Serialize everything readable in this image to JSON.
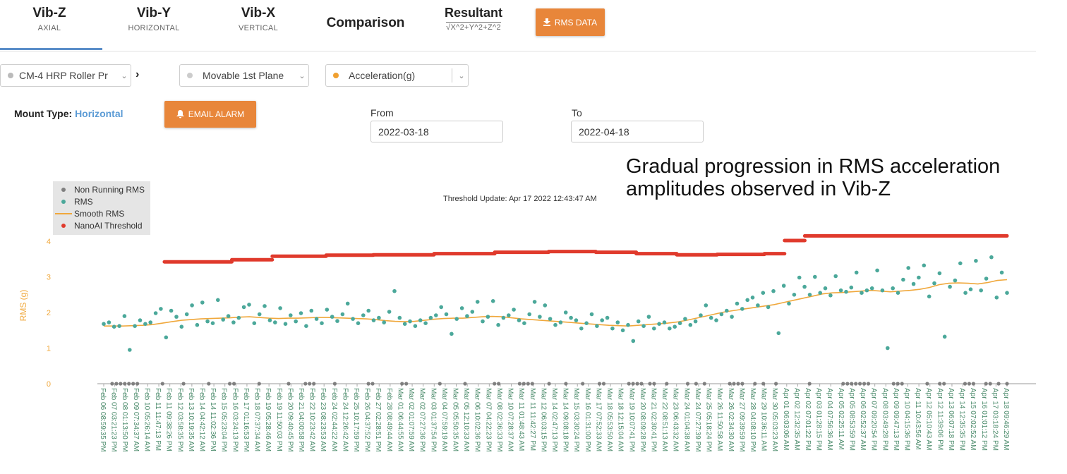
{
  "tabs": [
    {
      "label": "Vib-Z",
      "sub": "AXIAL"
    },
    {
      "label": "Vib-Y",
      "sub": "HORIZONTAL"
    },
    {
      "label": "Vib-X",
      "sub": "VERTICAL"
    },
    {
      "label": "Comparison",
      "sub": ""
    },
    {
      "label": "Resultant",
      "sub": "√X^2+Y^2+Z^2"
    }
  ],
  "rms_button": "RMS DATA",
  "selects": {
    "machine": "CM-4 HRP Roller Pr",
    "plane": "Movable 1st Plane",
    "measure": "Acceleration(g)"
  },
  "mount": {
    "label": "Mount Type:",
    "value": "Horizontal"
  },
  "email_alarm": "EMAIL ALARM",
  "from": {
    "label": "From",
    "value": "2022-03-18"
  },
  "to": {
    "label": "To",
    "value": "2022-04-18"
  },
  "annotation": {
    "line1": "Gradual progression in RMS acceleration",
    "line2": "amplitudes observed in Vib-Z"
  },
  "threshold_update": "Threshold Update: Apr 17 2022 12:43:47 AM",
  "colors": {
    "accent": "#e8863a",
    "tab_active": "#5b8ec9",
    "rms": "#4ba89a",
    "non_running": "#7f7f7f",
    "smooth": "#f0a83c",
    "threshold": "#e03a2c",
    "axis_label": "#f0a83c",
    "tick": "#4a8a6a"
  },
  "chart_data": {
    "type": "scatter",
    "title": "",
    "ylabel": "RMS (g)",
    "ylim": [
      0,
      4
    ],
    "yticks": [
      0,
      1,
      2,
      3,
      4
    ],
    "legend": [
      "Non Running RMS",
      "RMS",
      "Smooth RMS",
      "NanoAI Threshold"
    ],
    "legend_position": "top-left",
    "xticks": [
      "Feb 06 08:59:35 PM",
      "Feb 07 03:21:23 PM",
      "Feb 08 01:13:50 PM",
      "Feb 09 07:34:37 AM",
      "Feb 10 05:26:14 AM",
      "Feb 11 11:47:13 PM",
      "Feb 11 09:38:26 PM",
      "Feb 12 03:58:35 PM",
      "Feb 13 10:19:35 AM",
      "Feb 14 04:42:12 AM",
      "Feb 14 11:02:36 PM",
      "Feb 15 05:23:04 PM",
      "Feb 16 03:24:13 PM",
      "Feb 17 01:16:53 PM",
      "Feb 18 07:37:34 AM",
      "Feb 19 05:28:46 AM",
      "Feb 19 11:50:03 PM",
      "Feb 20 09:40:45 PM",
      "Feb 21 04:00:58 PM",
      "Feb 22 10:23:42 AM",
      "Feb 23 08:23:53 AM",
      "Feb 24 02:44:22 AM",
      "Feb 24 12:26:42 AM",
      "Feb 25 10:17:59 PM",
      "Feb 26 04:37:52 PM",
      "Feb 27 02:28:51 PM",
      "Feb 28 08:49:44 AM",
      "Mar 01 06:44:55 AM",
      "Mar 02 01:07:59 AM",
      "Mar 02 07:27:36 PM",
      "Mar 03 01:37:54 PM",
      "Mar 04 07:59:19 AM",
      "Mar 05 05:50:35 AM",
      "Mar 05 12:10:33 AM",
      "Mar 06 10:02:36 PM",
      "Mar 07 04:22:23 PM",
      "Mar 08 02:36:33 PM",
      "Mar 10 07:28:37 AM",
      "Mar 11 01:48:43 AM",
      "Mar 11 11:42:27 PM",
      "Mar 12 06:03:15 PM",
      "Mar 14 02:47:13 PM",
      "Mar 14 09:08:18 PM",
      "Mar 15 03:30:24 PM",
      "Mar 16 01:31:00 PM",
      "Mar 17 07:52:33 AM",
      "Mar 18 05:53:50 AM",
      "Mar 18 12:15:04 AM",
      "Mar 19 10:07:41 PM",
      "Mar 20 08:09:28 PM",
      "Mar 21 02:30:41 PM",
      "Mar 22 08:51:13 AM",
      "Mar 23 06:43:32 AM",
      "Mar 24 01:04:38 AM",
      "Mar 24 07:27:39 PM",
      "Mar 25 05:18:24 PM",
      "Mar 26 11:50:58 AM",
      "Mar 26 02:34:30 AM",
      "Mar 27 09:39:59 PM",
      "Mar 28 04:08:10 PM",
      "Mar 29 10:36:11 AM",
      "Mar 30 05:03:23 AM",
      "Apr 01 06:03:06 AM",
      "Apr 02 12:32:35 AM",
      "Apr 02 07:01:22 PM",
      "Apr 03 01:28:15 PM",
      "Apr 04 07:56:36 AM",
      "Apr 05 02:25:11 AM",
      "Apr 05 08:53:59 PM",
      "Apr 06 02:52:37 AM",
      "Apr 07 09:20:54 PM",
      "Apr 08 03:49:28 PM",
      "Apr 09 09:47:13 PM",
      "Apr 10 04:15:36 PM",
      "Apr 11 10:43:56 AM",
      "Apr 12 05:10:43 AM",
      "Apr 12 11:39:06 PM",
      "Apr 13 06:07:18 PM",
      "Apr 14 12:35:35 PM",
      "Apr 15 07:02:52 AM",
      "Apr 16 01:01:12 PM",
      "Apr 17 03:18:24 PM",
      "Apr 18 09:46:29 AM"
    ],
    "threshold_steps": [
      {
        "from_index": 9,
        "to_index": 19,
        "value": 3.42
      },
      {
        "from_index": 19,
        "to_index": 25,
        "value": 3.48
      },
      {
        "from_index": 25,
        "to_index": 33,
        "value": 3.58
      },
      {
        "from_index": 33,
        "to_index": 40,
        "value": 3.61
      },
      {
        "from_index": 40,
        "to_index": 49,
        "value": 3.62
      },
      {
        "from_index": 49,
        "to_index": 58,
        "value": 3.65
      },
      {
        "from_index": 58,
        "to_index": 66,
        "value": 3.69
      },
      {
        "from_index": 66,
        "to_index": 73,
        "value": 3.71
      },
      {
        "from_index": 73,
        "to_index": 79,
        "value": 3.69
      },
      {
        "from_index": 79,
        "to_index": 85,
        "value": 3.65
      },
      {
        "from_index": 85,
        "to_index": 91,
        "value": 3.62
      },
      {
        "from_index": 91,
        "to_index": 98,
        "value": 3.63
      },
      {
        "from_index": 98,
        "to_index": 101,
        "value": 3.65
      },
      {
        "from_index": 101,
        "to_index": 104,
        "value": 4.02
      },
      {
        "from_index": 104,
        "to_index": 134,
        "value": 4.15
      }
    ],
    "smooth_rms": [
      1.62,
      1.62,
      1.62,
      1.63,
      1.64,
      1.66,
      1.7,
      1.74,
      1.78,
      1.8,
      1.82,
      1.83,
      1.84,
      1.85,
      1.87,
      1.88,
      1.86,
      1.84,
      1.83,
      1.84,
      1.84,
      1.85,
      1.86,
      1.86,
      1.85,
      1.84,
      1.83,
      1.82,
      1.8,
      1.77,
      1.75,
      1.74,
      1.75,
      1.78,
      1.81,
      1.83,
      1.84,
      1.84,
      1.86,
      1.88,
      1.89,
      1.88,
      1.85,
      1.82,
      1.8,
      1.78,
      1.76,
      1.74,
      1.72,
      1.7,
      1.68,
      1.66,
      1.64,
      1.63,
      1.62,
      1.64,
      1.66,
      1.68,
      1.7,
      1.73,
      1.78,
      1.84,
      1.9,
      1.96,
      2.02,
      2.06,
      2.1,
      2.14,
      2.18,
      2.22,
      2.28,
      2.34,
      2.4,
      2.46,
      2.52,
      2.55,
      2.56,
      2.58,
      2.6,
      2.62,
      2.6,
      2.58,
      2.6,
      2.62,
      2.65,
      2.7,
      2.78,
      2.82,
      2.83,
      2.82,
      2.8,
      2.84,
      2.9,
      2.92
    ],
    "rms_points": [
      1.68,
      1.72,
      1.6,
      1.62,
      1.9,
      0.95,
      1.62,
      1.78,
      1.68,
      1.72,
      1.98,
      2.1,
      1.3,
      2.05,
      1.88,
      1.6,
      1.95,
      2.2,
      1.65,
      2.28,
      1.75,
      1.7,
      2.35,
      1.8,
      1.9,
      1.72,
      1.85,
      2.15,
      2.22,
      1.7,
      1.95,
      2.18,
      1.78,
      1.72,
      2.12,
      1.68,
      1.92,
      1.75,
      1.98,
      1.62,
      2.05,
      1.82,
      1.7,
      2.08,
      1.88,
      1.76,
      1.95,
      2.25,
      1.82,
      1.7,
      1.92,
      2.05,
      1.78,
      1.85,
      1.72,
      2.02,
      2.6,
      1.85,
      1.68,
      1.75,
      1.62,
      1.78,
      1.7,
      1.85,
      1.92,
      2.15,
      1.95,
      1.4,
      1.82,
      2.12,
      1.9,
      2.02,
      2.3,
      1.75,
      1.88,
      2.32,
      1.65,
      1.85,
      1.92,
      2.08,
      1.78,
      1.7,
      1.95,
      2.3,
      1.88,
      2.2,
      1.82,
      1.65,
      1.72,
      2.0,
      1.85,
      1.78,
      1.55,
      1.7,
      1.95,
      1.62,
      1.78,
      1.85,
      1.55,
      1.72,
      1.5,
      1.65,
      1.2,
      1.75,
      1.62,
      1.88,
      1.55,
      1.68,
      1.72,
      1.55,
      1.6,
      1.7,
      1.82,
      1.65,
      1.75,
      1.92,
      2.2,
      1.85,
      1.78,
      1.95,
      2.05,
      1.88,
      2.25,
      2.1,
      2.35,
      2.42,
      2.2,
      2.55,
      2.15,
      2.6,
      1.42,
      2.75,
      2.25,
      2.5,
      2.98,
      2.72,
      2.5,
      3.0,
      2.55,
      2.68,
      2.48,
      3.02,
      2.62,
      2.58,
      2.7,
      3.12,
      2.55,
      2.62,
      2.68,
      3.18,
      2.62,
      1.0,
      2.68,
      2.55,
      2.92,
      3.25,
      2.8,
      2.98,
      3.32,
      2.45,
      2.82,
      3.1,
      1.32,
      2.72,
      2.9,
      3.38,
      2.55,
      2.65,
      3.45,
      2.62,
      2.95,
      3.55,
      2.42,
      3.12,
      2.55
    ],
    "non_running_indices": [
      2,
      3,
      4,
      5,
      6,
      7,
      8,
      14,
      19,
      25,
      30,
      31,
      37,
      44,
      48,
      49,
      50,
      55,
      63,
      64,
      71,
      72,
      80,
      86,
      93,
      94,
      99,
      100,
      101,
      102,
      106,
      110,
      114,
      118,
      119,
      125,
      126,
      127,
      128,
      130,
      131,
      134,
      139,
      141,
      143,
      149,
      150,
      151,
      152,
      155,
      157,
      160,
      168,
      176,
      177,
      178,
      179,
      180,
      181,
      182,
      188,
      189,
      190,
      196,
      199,
      200,
      205,
      206,
      207,
      210,
      211,
      213,
      215
    ]
  }
}
